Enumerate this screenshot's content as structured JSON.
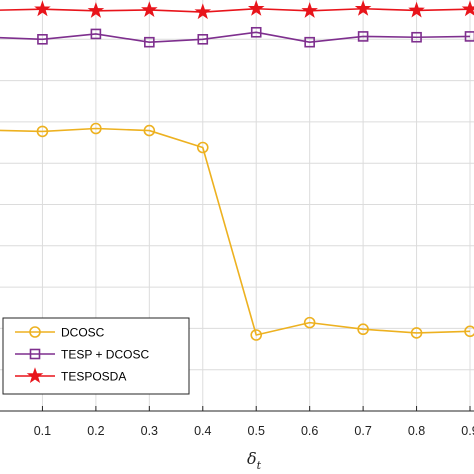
{
  "chart_data": {
    "type": "line",
    "x": [
      0,
      0.1,
      0.2,
      0.3,
      0.4,
      0.5,
      0.6,
      0.7,
      0.8,
      0.9
    ],
    "x_tick_labels": [
      "0.1",
      "0.2",
      "0.3",
      "0.4",
      "0.5",
      "0.6",
      "0.7",
      "0.8",
      "0.9"
    ],
    "xlabel": "δ",
    "xlabel_subscript": "t",
    "xlim": [
      0,
      0.9
    ],
    "ylim": [
      0,
      1
    ],
    "grid": true,
    "legend_position": "bottom-left",
    "series": [
      {
        "name": "DCOSC",
        "color": "#EDB120",
        "marker": "circle",
        "values": [
          0.68,
          0.677,
          0.684,
          0.679,
          0.638,
          0.184,
          0.214,
          0.198,
          0.189,
          0.193
        ]
      },
      {
        "name": "TESP + DCOSC",
        "color": "#7E2F8E",
        "marker": "square",
        "values": [
          0.905,
          0.9,
          0.913,
          0.893,
          0.9,
          0.917,
          0.893,
          0.907,
          0.905,
          0.907
        ]
      },
      {
        "name": "TESPOSDA",
        "color": "#E8141B",
        "marker": "star",
        "values": [
          0.97,
          0.973,
          0.969,
          0.971,
          0.966,
          0.974,
          0.969,
          0.974,
          0.97,
          0.973
        ]
      }
    ]
  }
}
